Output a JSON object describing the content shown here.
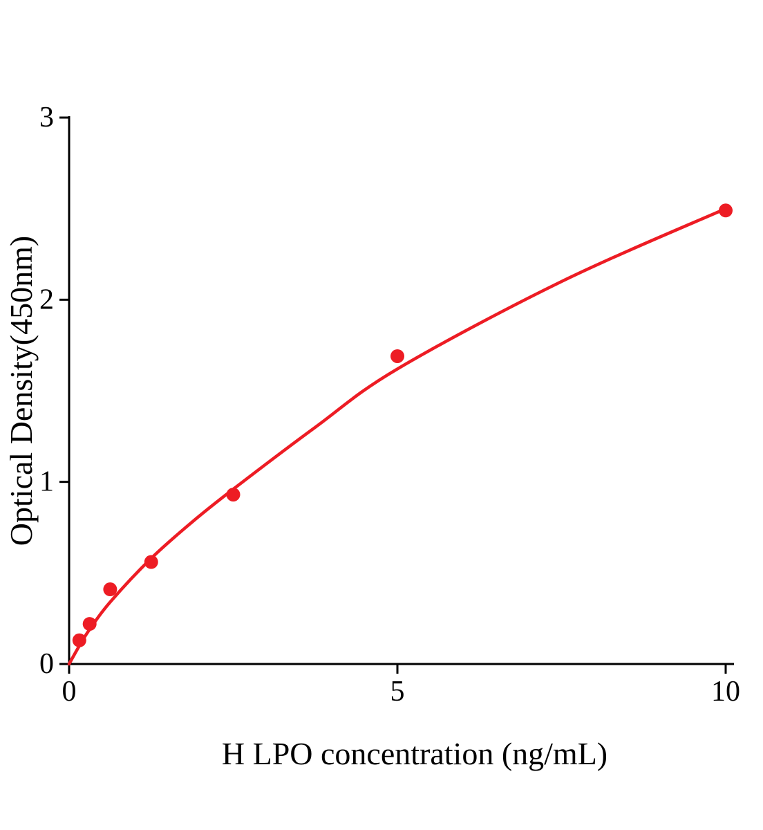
{
  "figure": {
    "background": "#ffffff",
    "accent_color": "#ed1c24",
    "axis_color": "#000000"
  },
  "chart_data": {
    "type": "scatter",
    "title": "",
    "xlabel": "H LPO concentration (ng/mL)",
    "ylabel": "Optical Density(450nm)",
    "xlim": [
      0,
      10
    ],
    "ylim": [
      0,
      3
    ],
    "x_ticks": [
      0,
      5,
      10
    ],
    "y_ticks": [
      0,
      1,
      2,
      3
    ],
    "grid": false,
    "legend": "none",
    "series": [
      {
        "name": "H LPO standard points",
        "marker": "circle",
        "color": "#ed1c24",
        "x": [
          0.156,
          0.3125,
          0.625,
          1.25,
          2.5,
          5,
          10
        ],
        "y": [
          0.13,
          0.22,
          0.41,
          0.56,
          0.93,
          1.69,
          2.49
        ]
      }
    ],
    "fit_curve": {
      "name": "fitted standard curve",
      "color": "#ed1c24",
      "x": [
        0,
        0.156,
        0.3125,
        0.625,
        1.25,
        1.875,
        2.5,
        3.75,
        5,
        7.5,
        10
      ],
      "y": [
        0,
        0.1,
        0.19,
        0.34,
        0.58,
        0.78,
        0.96,
        1.3,
        1.62,
        2.1,
        2.5
      ]
    }
  }
}
